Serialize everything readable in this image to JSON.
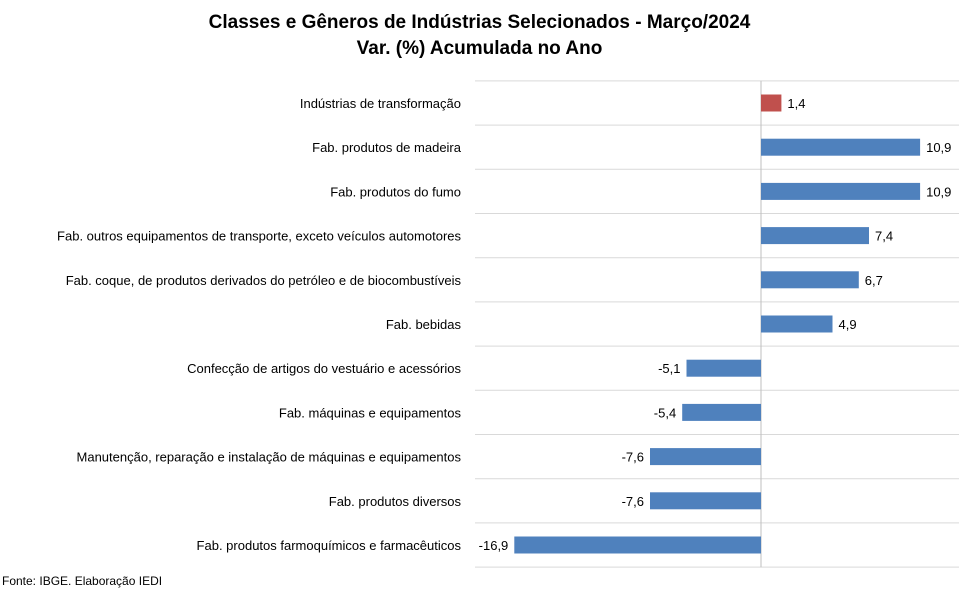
{
  "chart_data": {
    "type": "bar",
    "orientation": "horizontal",
    "title": "Classes e Gêneros de Indústrias Selecionados - Março/2024",
    "subtitle": "Var. (%) Acumulada no Ano",
    "xlabel": "",
    "ylabel": "",
    "xlim": [
      -19,
      7.2
    ],
    "grid": "horizontal separators",
    "categories": [
      "Indústrias de transformação",
      "Fab. produtos de madeira",
      "Fab. produtos do fumo",
      "Fab. outros equipamentos de transporte, exceto veículos automotores",
      "Fab. coque, de produtos derivados do petróleo e de biocombustíveis",
      "Fab. bebidas",
      "Confecção de artigos do vestuário e acessórios",
      "Fab. máquinas e equipamentos",
      "Manutenção, reparação e instalação de máquinas e equipamentos",
      "Fab. produtos diversos",
      "Fab. produtos farmoquímicos e farmacêuticos"
    ],
    "values": [
      1.4,
      10.9,
      10.9,
      7.4,
      6.7,
      4.9,
      -5.1,
      -5.4,
      -7.6,
      -7.6,
      -16.9
    ],
    "data_labels": [
      "1,4",
      "10,9",
      "10,9",
      "7,4",
      "6,7",
      "4,9",
      "-5,1",
      "-5,4",
      "-7,6",
      "-7,6",
      "-16,9"
    ],
    "colors": {
      "highlight": "#C0504D",
      "bar": "#4F81BD",
      "grid": "#D9D9D9",
      "axis": "#BFBFBF"
    },
    "highlight_index": 0
  },
  "source": "Fonte: IBGE. Elaboração IEDI"
}
